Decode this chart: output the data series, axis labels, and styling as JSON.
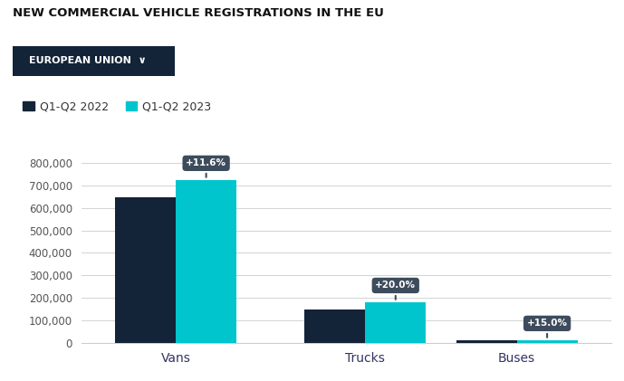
{
  "title": "NEW COMMERCIAL VEHICLE REGISTRATIONS IN THE EU",
  "button_text": "EUROPEAN UNION  ∨",
  "legend": [
    "Q1-Q2 2022",
    "Q1-Q2 2023"
  ],
  "categories": [
    "Vans",
    "Trucks",
    "Buses"
  ],
  "values_2022": [
    648000,
    150000,
    10000
  ],
  "values_2023": [
    723000,
    180000,
    11500
  ],
  "annotations": [
    "+11.6%",
    "+20.0%",
    "+15.0%"
  ],
  "color_2022": "#132338",
  "color_2023": "#00c5cd",
  "bg_color": "#ffffff",
  "grid_color": "#cccccc",
  "annotation_bg": "#3d4c5c",
  "annotation_text_color": "#ffffff",
  "title_color": "#111111",
  "ytick_color": "#555555",
  "xtick_color": "#333366",
  "ylim": [
    0,
    880000
  ],
  "yticks": [
    0,
    100000,
    200000,
    300000,
    400000,
    500000,
    600000,
    700000,
    800000
  ],
  "bar_width": 0.32
}
